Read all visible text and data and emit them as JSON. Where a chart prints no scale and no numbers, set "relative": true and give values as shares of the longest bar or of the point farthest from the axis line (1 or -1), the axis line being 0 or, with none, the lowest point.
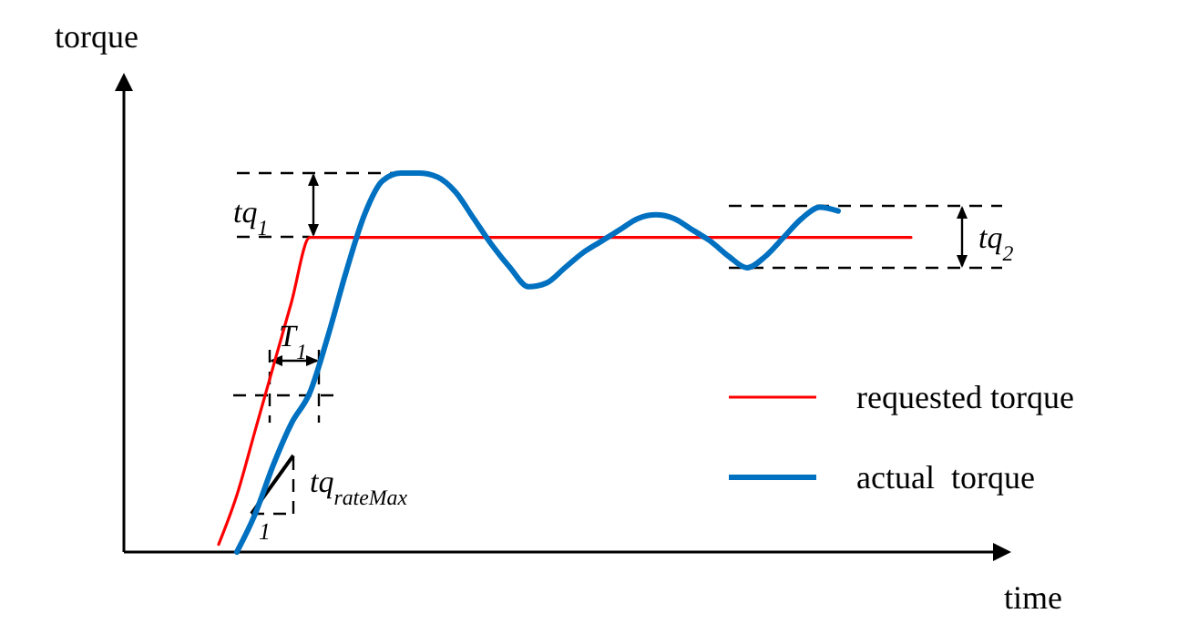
{
  "chart_data": {
    "type": "line",
    "relative": true,
    "xlabel": "time",
    "ylabel": "torque",
    "categories": [
      null,
      null,
      null,
      null,
      null,
      null,
      null,
      null,
      null,
      null,
      null,
      null,
      null,
      null,
      null,
      null,
      null,
      null,
      null,
      null,
      null,
      null,
      null,
      null,
      null,
      null,
      null,
      null,
      null,
      null,
      null,
      null,
      null,
      null,
      null,
      null,
      null,
      null,
      null
    ],
    "series": [
      {
        "name": "requested torque",
        "color": "#ff0000",
        "values": [
          0.02,
          0.15,
          0.32,
          0.49,
          0.66,
          0.83,
          0.83,
          0.83,
          0.83,
          0.83,
          0.83,
          0.83,
          0.83,
          0.83,
          0.83,
          0.83,
          0.83,
          0.83,
          0.83,
          0.83,
          0.83,
          0.83,
          0.83,
          0.83,
          0.83,
          0.83,
          0.83,
          0.83,
          0.83,
          0.83,
          0.83,
          0.83,
          0.83,
          0.83,
          0.83,
          0.83,
          0.83,
          0.83,
          0.83
        ]
      },
      {
        "name": "actual  torque",
        "color": "#0070c0",
        "values": [
          null,
          0.0,
          0.1,
          0.23,
          0.34,
          0.42,
          0.57,
          0.74,
          0.89,
          0.98,
          1.0,
          1.0,
          0.99,
          0.95,
          0.88,
          0.81,
          0.75,
          0.7,
          0.71,
          0.75,
          0.79,
          0.82,
          0.85,
          0.88,
          0.89,
          0.88,
          0.85,
          0.82,
          0.78,
          0.75,
          0.78,
          0.83,
          0.88,
          0.91,
          0.9,
          null,
          null,
          null,
          null
        ]
      }
    ],
    "annotations": [
      "tq$_{1}$",
      "T$_{1}$",
      "tq$_{rateMax}$",
      "1",
      "tq$_{2}$"
    ],
    "legend": "bottom right",
    "marker": "none",
    "line_style": "solid"
  }
}
